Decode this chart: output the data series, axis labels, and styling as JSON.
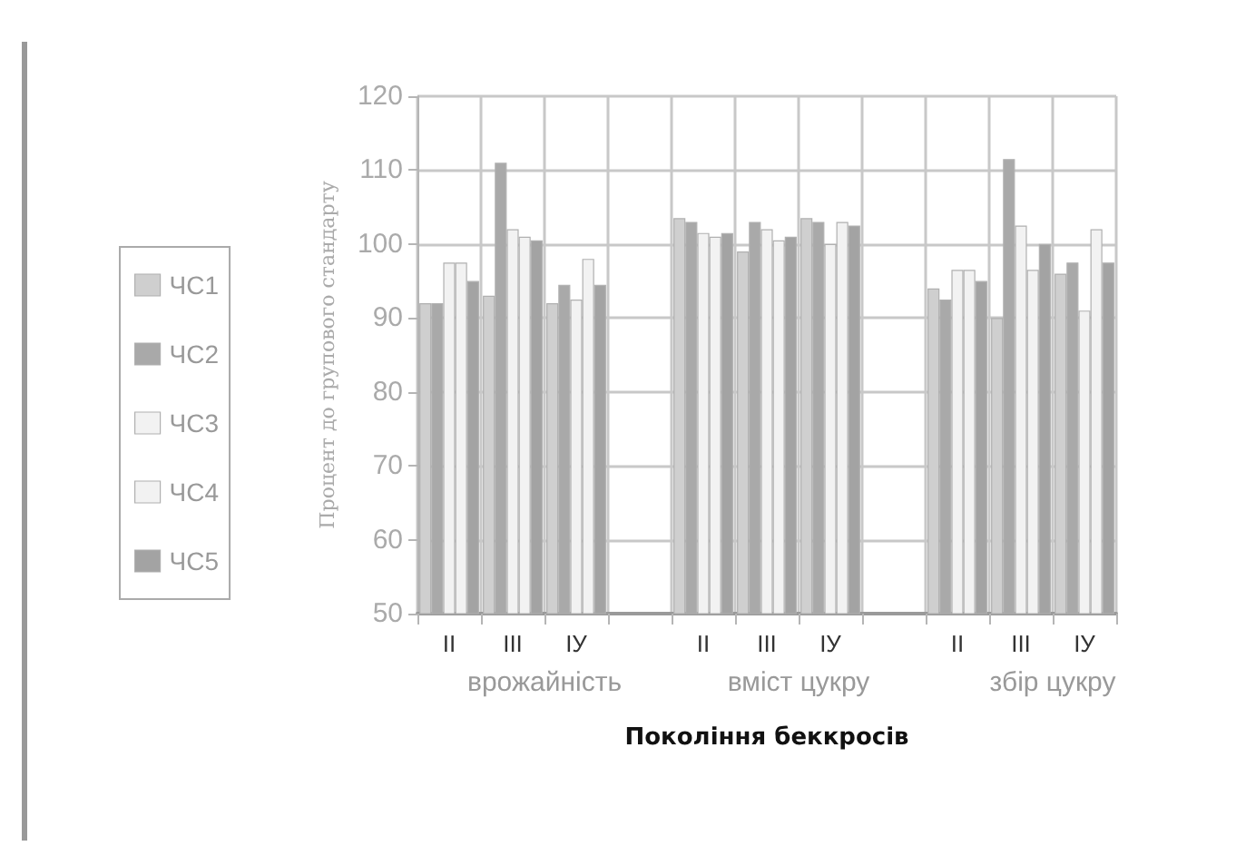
{
  "chart_data": {
    "type": "bar",
    "xlabel": "Покоління беккросів",
    "ylabel": "Процент до групового стандарту",
    "categories": [
      "II",
      "III",
      "IУ",
      null,
      "II",
      "III",
      "IУ",
      null,
      "II",
      "III",
      "IУ"
    ],
    "series": [
      {
        "name": "ЧС1",
        "color": "#cfcfcf",
        "values": [
          92,
          93,
          92,
          null,
          103.5,
          99,
          103.5,
          null,
          94,
          90,
          96
        ]
      },
      {
        "name": "ЧС2",
        "color": "#a9a9a9",
        "values": [
          92,
          111,
          94.5,
          null,
          103,
          103,
          103,
          null,
          92.5,
          111.5,
          97.5
        ]
      },
      {
        "name": "ЧС3",
        "color": "#f2f2f2",
        "values": [
          97.5,
          102,
          92.5,
          null,
          101.5,
          102,
          100,
          null,
          96.5,
          102.5,
          91
        ]
      },
      {
        "name": "ЧС4",
        "color": "#f2f2f2",
        "values": [
          97.5,
          101,
          98,
          null,
          101,
          100.5,
          103,
          null,
          96.5,
          96.5,
          102
        ]
      },
      {
        "name": "ЧС5",
        "color": "#a3a3a3",
        "values": [
          95,
          100.5,
          94.5,
          null,
          101.5,
          101,
          102.5,
          null,
          95,
          100,
          97.5
        ]
      }
    ],
    "annotations": [
      "врожайність",
      "вміст цукру",
      "збір цукру"
    ],
    "ylim": [
      50,
      120
    ],
    "yticks": [
      50,
      60,
      70,
      80,
      90,
      100,
      110,
      120
    ],
    "grid": true,
    "legend": "left"
  }
}
